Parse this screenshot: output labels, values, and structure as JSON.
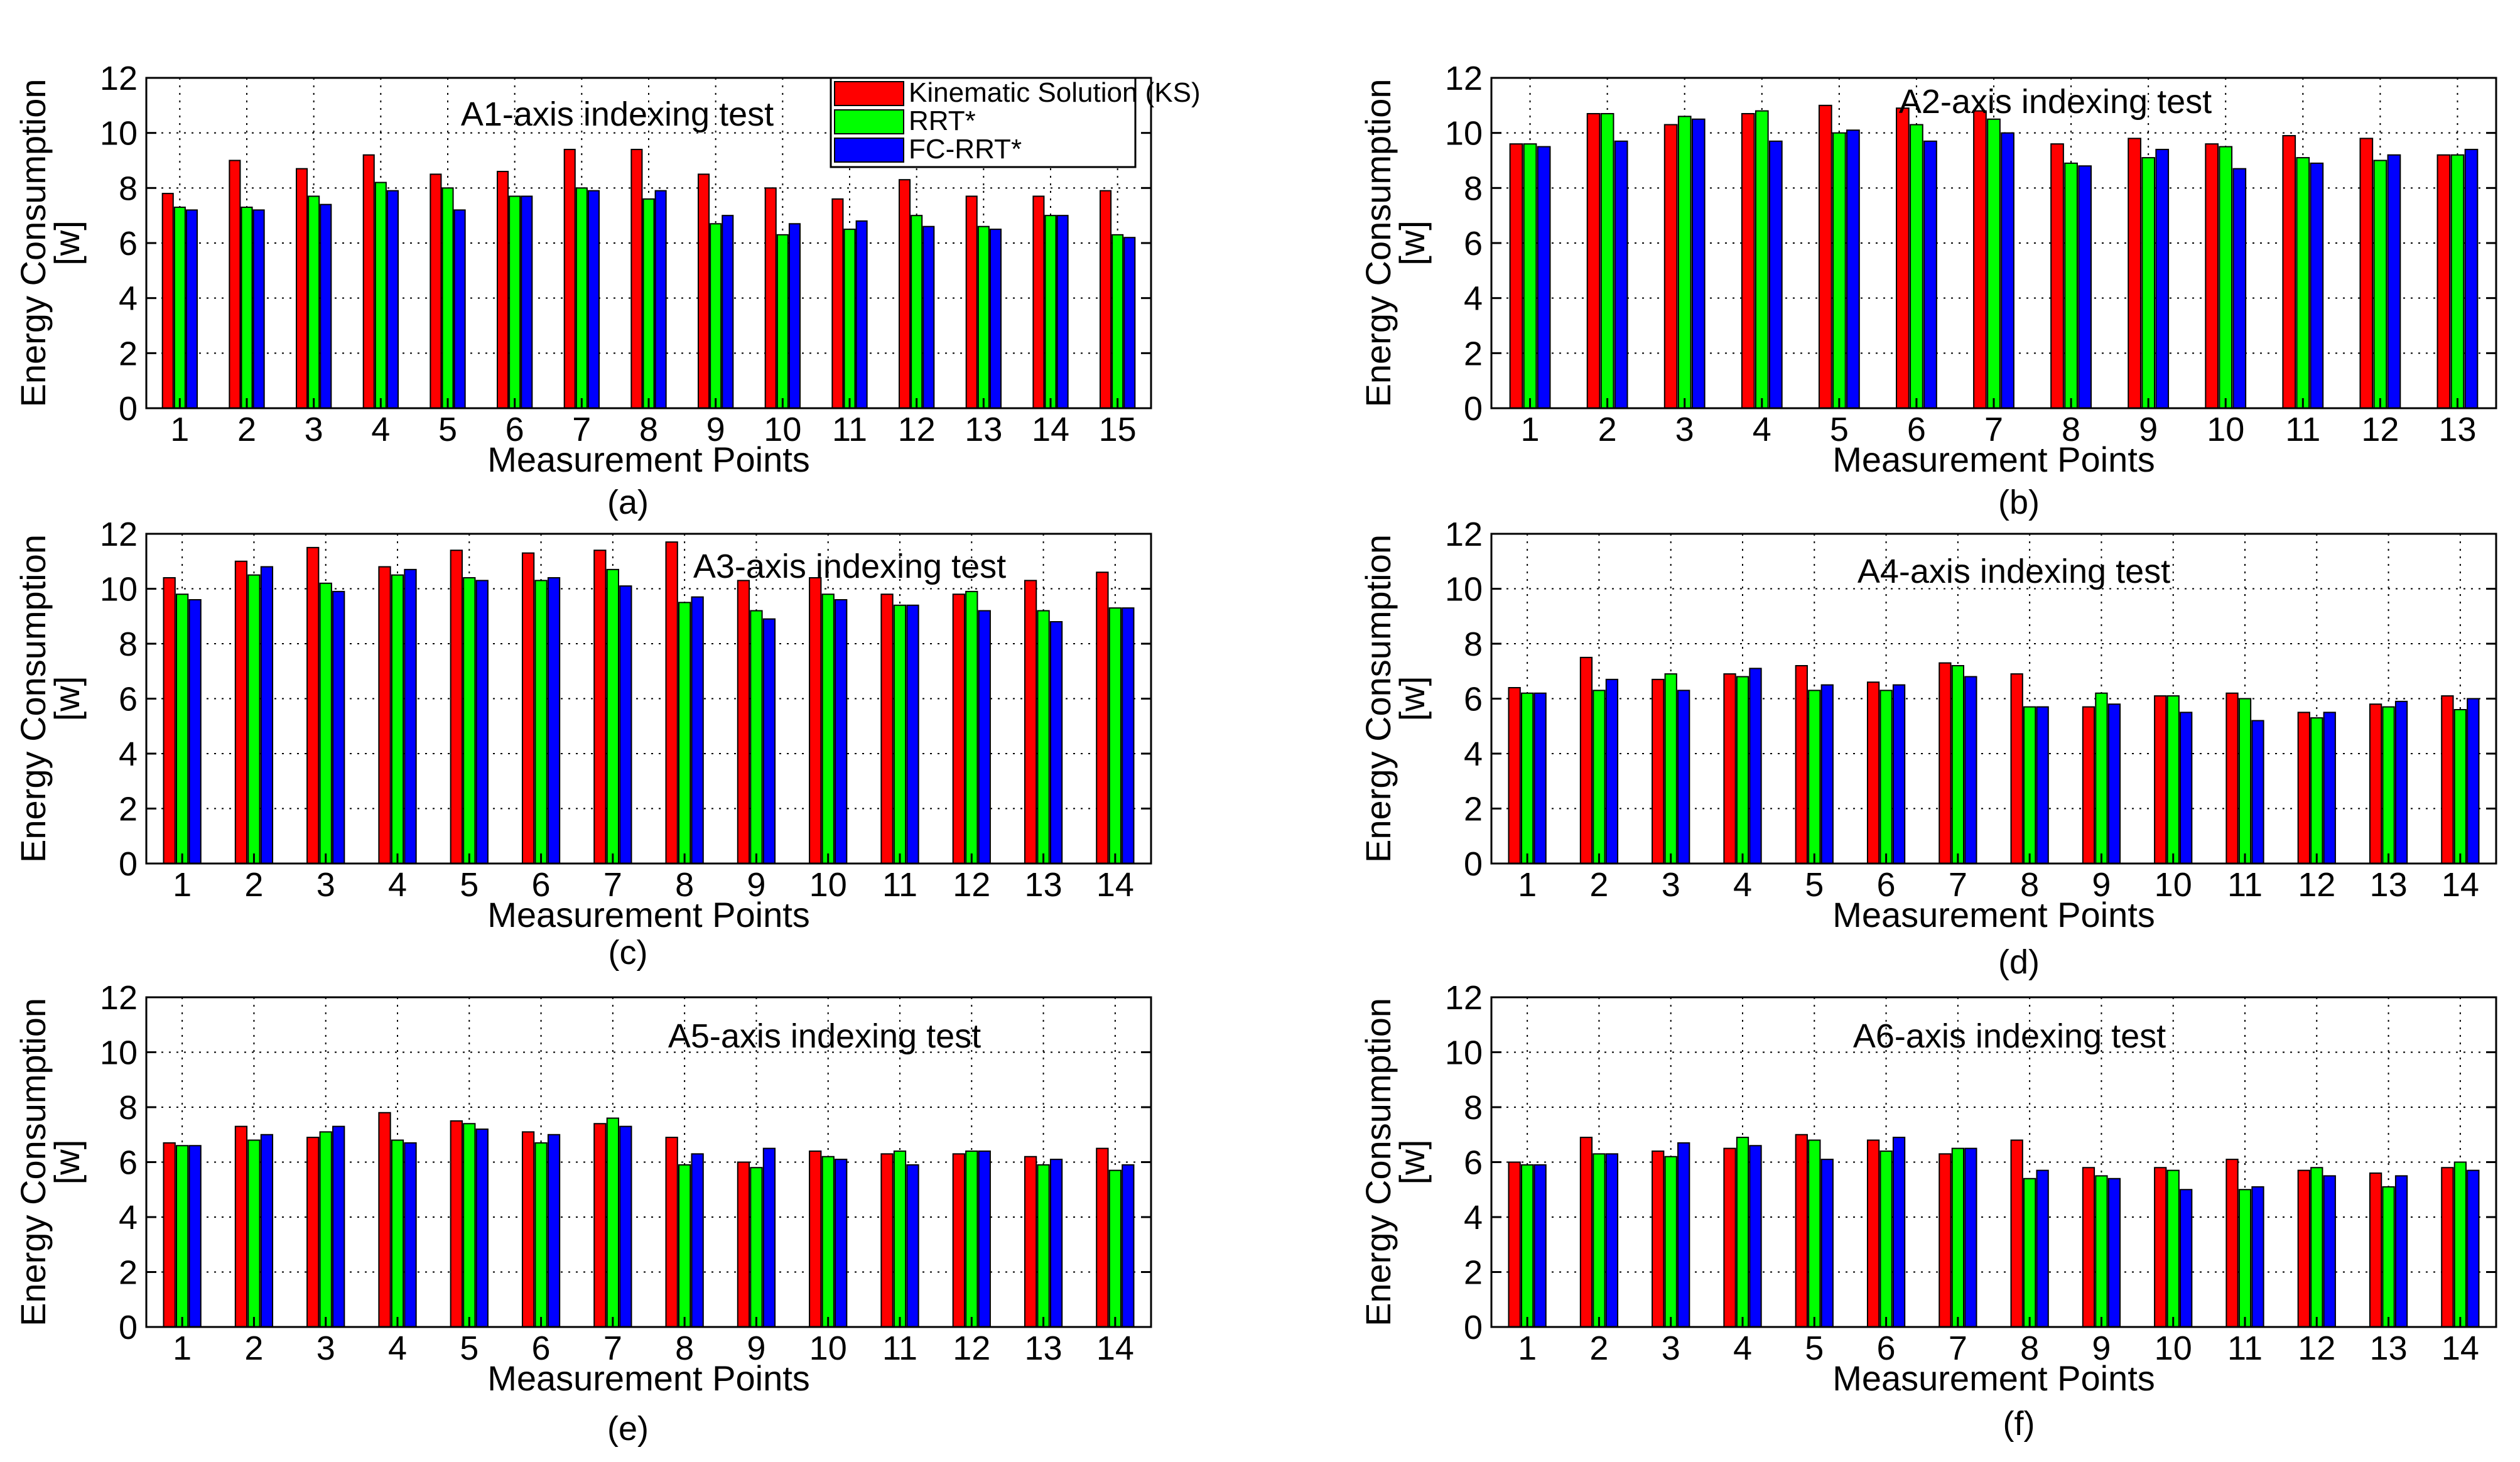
{
  "colors": {
    "ks": "#ff0000",
    "rrt": "#00ff00",
    "fc": "#0000ff",
    "grid": "#000000"
  },
  "legend": {
    "ks": "Kinematic Solution (KS)",
    "rrt": "RRT*",
    "fc": "FC-RRT*"
  },
  "chart_data": [
    {
      "type": "bar",
      "title": "A1-axis indexing test",
      "caption": "(a)",
      "xlabel": "Measurement Points",
      "ylabel": [
        "Energy Consumption",
        "[w]"
      ],
      "ylim": [
        0,
        12
      ],
      "yticks": [
        "0",
        "2",
        "4",
        "6",
        "8",
        "10",
        "12"
      ],
      "categories": [
        "1",
        "2",
        "3",
        "4",
        "5",
        "6",
        "7",
        "8",
        "9",
        "10",
        "11",
        "12",
        "13",
        "14",
        "15"
      ],
      "series": [
        {
          "name": "Kinematic Solution (KS)",
          "values": [
            7.8,
            9.0,
            8.7,
            9.2,
            8.5,
            8.6,
            9.4,
            9.4,
            8.5,
            8.0,
            7.6,
            8.3,
            7.7,
            7.7,
            7.9
          ]
        },
        {
          "name": "RRT*",
          "values": [
            7.3,
            7.3,
            7.7,
            8.2,
            8.0,
            7.7,
            8.0,
            7.6,
            6.7,
            6.3,
            6.5,
            7.0,
            6.6,
            7.0,
            6.3
          ]
        },
        {
          "name": "FC-RRT*",
          "values": [
            7.2,
            7.2,
            7.4,
            7.9,
            7.2,
            7.7,
            7.9,
            7.9,
            7.0,
            6.7,
            6.8,
            6.6,
            6.5,
            7.0,
            6.2
          ]
        }
      ]
    },
    {
      "type": "bar",
      "title": "A2-axis indexing test",
      "caption": "(b)",
      "xlabel": "Measurement Points",
      "ylabel": [
        "Energy Consumption",
        "[w]"
      ],
      "ylim": [
        0,
        12
      ],
      "yticks": [
        "0",
        "2",
        "4",
        "6",
        "8",
        "10",
        "12"
      ],
      "categories": [
        "1",
        "2",
        "3",
        "4",
        "5",
        "6",
        "7",
        "8",
        "9",
        "10",
        "11",
        "12",
        "13"
      ],
      "series": [
        {
          "name": "Kinematic Solution (KS)",
          "values": [
            9.6,
            10.7,
            10.3,
            10.7,
            11.0,
            10.9,
            10.8,
            9.6,
            9.8,
            9.6,
            9.9,
            9.8,
            9.2
          ]
        },
        {
          "name": "RRT*",
          "values": [
            9.6,
            10.7,
            10.6,
            10.8,
            10.0,
            10.3,
            10.5,
            8.9,
            9.1,
            9.5,
            9.1,
            9.0,
            9.2
          ]
        },
        {
          "name": "FC-RRT*",
          "values": [
            9.5,
            9.7,
            10.5,
            9.7,
            10.1,
            9.7,
            10.0,
            8.8,
            9.4,
            8.7,
            8.9,
            9.2,
            9.4
          ]
        }
      ]
    },
    {
      "type": "bar",
      "title": "A3-axis indexing test",
      "caption": "(c)",
      "xlabel": "Measurement Points",
      "ylabel": [
        "Energy Consumption",
        "[w]"
      ],
      "ylim": [
        0,
        12
      ],
      "yticks": [
        "0",
        "2",
        "4",
        "6",
        "8",
        "10",
        "12"
      ],
      "categories": [
        "1",
        "2",
        "3",
        "4",
        "5",
        "6",
        "7",
        "8",
        "9",
        "10",
        "11",
        "12",
        "13",
        "14"
      ],
      "series": [
        {
          "name": "Kinematic Solution (KS)",
          "values": [
            10.4,
            11.0,
            11.5,
            10.8,
            11.4,
            11.3,
            11.4,
            11.7,
            10.3,
            10.4,
            9.8,
            9.8,
            10.3,
            10.6
          ]
        },
        {
          "name": "RRT*",
          "values": [
            9.8,
            10.5,
            10.2,
            10.5,
            10.4,
            10.3,
            10.7,
            9.5,
            9.2,
            9.8,
            9.4,
            9.9,
            9.2,
            9.3
          ]
        },
        {
          "name": "FC-RRT*",
          "values": [
            9.6,
            10.8,
            9.9,
            10.7,
            10.3,
            10.4,
            10.1,
            9.7,
            8.9,
            9.6,
            9.4,
            9.2,
            8.8,
            9.3
          ]
        }
      ]
    },
    {
      "type": "bar",
      "title": "A4-axis indexing test",
      "caption": "(d)",
      "xlabel": "Measurement Points",
      "ylabel": [
        "Energy Consumption",
        "[w]"
      ],
      "ylim": [
        0,
        12
      ],
      "yticks": [
        "0",
        "2",
        "4",
        "6",
        "8",
        "10",
        "12"
      ],
      "categories": [
        "1",
        "2",
        "3",
        "4",
        "5",
        "6",
        "7",
        "8",
        "9",
        "10",
        "11",
        "12",
        "13",
        "14"
      ],
      "series": [
        {
          "name": "Kinematic Solution (KS)",
          "values": [
            6.4,
            7.5,
            6.7,
            6.9,
            7.2,
            6.6,
            7.3,
            6.9,
            5.7,
            6.1,
            6.2,
            5.5,
            5.8,
            6.1
          ]
        },
        {
          "name": "RRT*",
          "values": [
            6.2,
            6.3,
            6.9,
            6.8,
            6.3,
            6.3,
            7.2,
            5.7,
            6.2,
            6.1,
            6.0,
            5.3,
            5.7,
            5.6
          ]
        },
        {
          "name": "FC-RRT*",
          "values": [
            6.2,
            6.7,
            6.3,
            7.1,
            6.5,
            6.5,
            6.8,
            5.7,
            5.8,
            5.5,
            5.2,
            5.5,
            5.9,
            6.0
          ]
        }
      ]
    },
    {
      "type": "bar",
      "title": "A5-axis indexing test",
      "caption": "(e)",
      "xlabel": "Measurement Points",
      "ylabel": [
        "Energy Consumption",
        "[w]"
      ],
      "ylim": [
        0,
        12
      ],
      "yticks": [
        "0",
        "2",
        "4",
        "6",
        "8",
        "10",
        "12"
      ],
      "categories": [
        "1",
        "2",
        "3",
        "4",
        "5",
        "6",
        "7",
        "8",
        "9",
        "10",
        "11",
        "12",
        "13",
        "14"
      ],
      "series": [
        {
          "name": "Kinematic Solution (KS)",
          "values": [
            6.7,
            7.3,
            6.9,
            7.8,
            7.5,
            7.1,
            7.4,
            6.9,
            6.0,
            6.4,
            6.3,
            6.3,
            6.2,
            6.5
          ]
        },
        {
          "name": "RRT*",
          "values": [
            6.6,
            6.8,
            7.1,
            6.8,
            7.4,
            6.7,
            7.6,
            5.9,
            5.8,
            6.2,
            6.4,
            6.4,
            5.9,
            5.7
          ]
        },
        {
          "name": "FC-RRT*",
          "values": [
            6.6,
            7.0,
            7.3,
            6.7,
            7.2,
            7.0,
            7.3,
            6.3,
            6.5,
            6.1,
            5.9,
            6.4,
            6.1,
            5.9
          ]
        }
      ]
    },
    {
      "type": "bar",
      "title": "A6-axis indexing test",
      "caption": "(f)",
      "xlabel": "Measurement Points",
      "ylabel": [
        "Energy Consumption",
        "[w]"
      ],
      "ylim": [
        0,
        12
      ],
      "yticks": [
        "0",
        "2",
        "4",
        "6",
        "8",
        "10",
        "12"
      ],
      "categories": [
        "1",
        "2",
        "3",
        "4",
        "5",
        "6",
        "7",
        "8",
        "9",
        "10",
        "11",
        "12",
        "13",
        "14"
      ],
      "series": [
        {
          "name": "Kinematic Solution (KS)",
          "values": [
            6.0,
            6.9,
            6.4,
            6.5,
            7.0,
            6.8,
            6.3,
            6.8,
            5.8,
            5.8,
            6.1,
            5.7,
            5.6,
            5.8
          ]
        },
        {
          "name": "RRT*",
          "values": [
            5.9,
            6.3,
            6.2,
            6.9,
            6.8,
            6.4,
            6.5,
            5.4,
            5.5,
            5.7,
            5.0,
            5.8,
            5.1,
            6.0
          ]
        },
        {
          "name": "FC-RRT*",
          "values": [
            5.9,
            6.3,
            6.7,
            6.6,
            6.1,
            6.9,
            6.5,
            5.7,
            5.4,
            5.0,
            5.1,
            5.5,
            5.5,
            5.7
          ]
        }
      ]
    }
  ]
}
